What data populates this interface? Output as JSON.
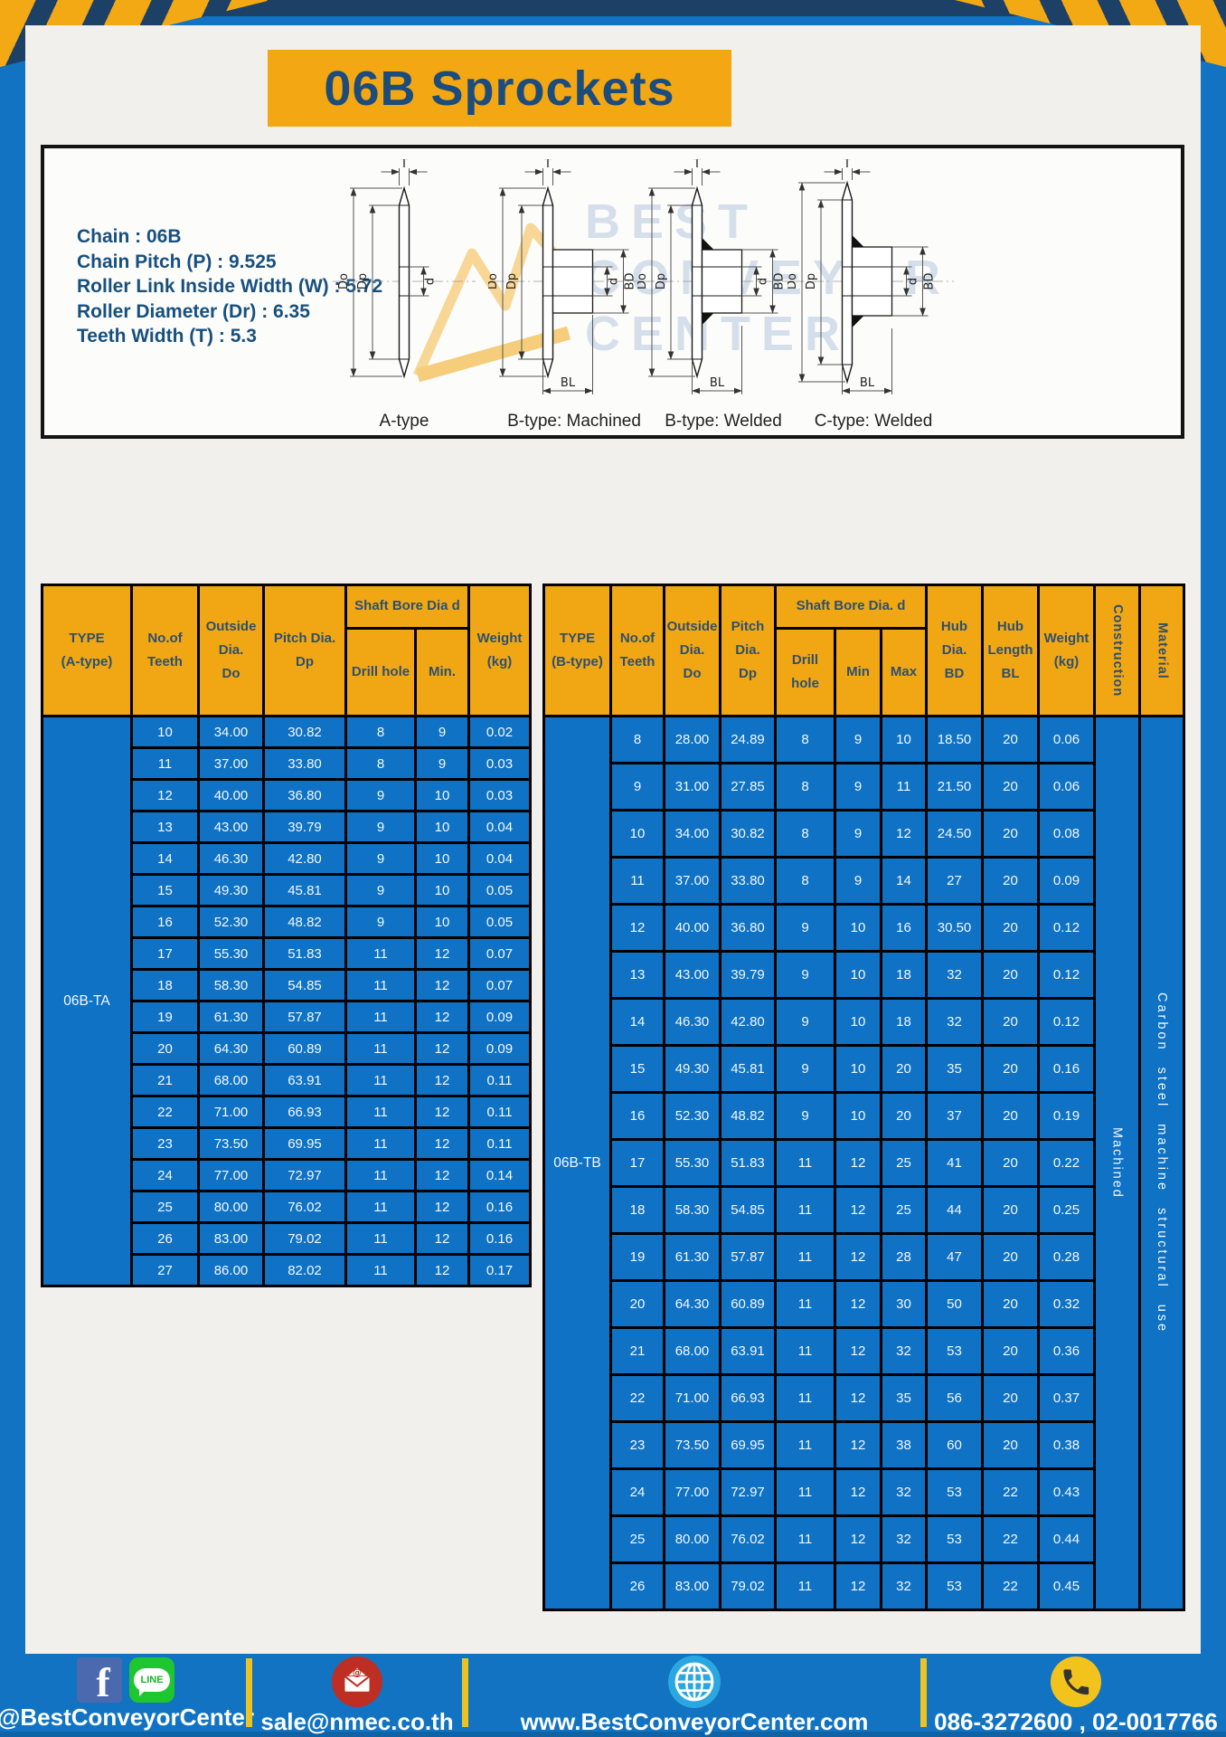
{
  "title": "06B Sprockets",
  "specs": [
    {
      "label": "Chain",
      "value": "06B"
    },
    {
      "label": "Chain Pitch (P)",
      "value": "9.525"
    },
    {
      "label": "Roller Link Inside Width (W)",
      "value": "5.72"
    },
    {
      "label": "Roller Diameter (Dr)",
      "value": "6.35"
    },
    {
      "label": "Teeth Width (T)",
      "value": "5.3"
    }
  ],
  "diagram": {
    "types": [
      "A-type",
      "B-type: Machined",
      "B-type: Welded",
      "C-type: Welded"
    ],
    "dims": {
      "t": "T",
      "do": "Do",
      "dp": "Dp",
      "d": "d",
      "bd": "BD",
      "bl": "BL"
    },
    "watermark": [
      "BEST",
      "CONVEYOR",
      "CENTER"
    ]
  },
  "table_a": {
    "headers": {
      "type": "TYPE\n(A-type)",
      "teeth": "No.of\nTeeth",
      "outside": "Outside\nDia.\nDo",
      "pitch": "Pitch Dia.\nDp",
      "bore_group": "Shaft Bore Dia d",
      "drill": "Drill hole",
      "min": "Min.",
      "weight": "Weight\n(kg)"
    },
    "type_label": "06B-TA",
    "rows": [
      [
        "10",
        "34.00",
        "30.82",
        "8",
        "9",
        "0.02"
      ],
      [
        "11",
        "37.00",
        "33.80",
        "8",
        "9",
        "0.03"
      ],
      [
        "12",
        "40.00",
        "36.80",
        "9",
        "10",
        "0.03"
      ],
      [
        "13",
        "43.00",
        "39.79",
        "9",
        "10",
        "0.04"
      ],
      [
        "14",
        "46.30",
        "42.80",
        "9",
        "10",
        "0.04"
      ],
      [
        "15",
        "49.30",
        "45.81",
        "9",
        "10",
        "0.05"
      ],
      [
        "16",
        "52.30",
        "48.82",
        "9",
        "10",
        "0.05"
      ],
      [
        "17",
        "55.30",
        "51.83",
        "11",
        "12",
        "0.07"
      ],
      [
        "18",
        "58.30",
        "54.85",
        "11",
        "12",
        "0.07"
      ],
      [
        "19",
        "61.30",
        "57.87",
        "11",
        "12",
        "0.09"
      ],
      [
        "20",
        "64.30",
        "60.89",
        "11",
        "12",
        "0.09"
      ],
      [
        "21",
        "68.00",
        "63.91",
        "11",
        "12",
        "0.11"
      ],
      [
        "22",
        "71.00",
        "66.93",
        "11",
        "12",
        "0.11"
      ],
      [
        "23",
        "73.50",
        "69.95",
        "11",
        "12",
        "0.11"
      ],
      [
        "24",
        "77.00",
        "72.97",
        "11",
        "12",
        "0.14"
      ],
      [
        "25",
        "80.00",
        "76.02",
        "11",
        "12",
        "0.16"
      ],
      [
        "26",
        "83.00",
        "79.02",
        "11",
        "12",
        "0.16"
      ],
      [
        "27",
        "86.00",
        "82.02",
        "11",
        "12",
        "0.17"
      ]
    ]
  },
  "table_b": {
    "headers": {
      "type": "TYPE\n(B-type)",
      "teeth": "No.of\nTeeth",
      "outside": "Outside\nDia.\nDo",
      "pitch": "Pitch\nDia.\nDp",
      "bore_group": "Shaft Bore Dia.  d",
      "drill": "Drill hole",
      "min": "Min",
      "max": "Max",
      "hub_dia": "Hub\nDia.\nBD",
      "hub_len": "Hub\nLength\nBL",
      "weight": "Weight\n(kg)",
      "construction": "Construction",
      "material": "Material"
    },
    "type_label": "06B-TB",
    "construction": "Machined",
    "material": "Carbon steel machine structural use",
    "rows": [
      [
        "8",
        "28.00",
        "24.89",
        "8",
        "9",
        "10",
        "18.50",
        "20",
        "0.06"
      ],
      [
        "9",
        "31.00",
        "27.85",
        "8",
        "9",
        "11",
        "21.50",
        "20",
        "0.06"
      ],
      [
        "10",
        "34.00",
        "30.82",
        "8",
        "9",
        "12",
        "24.50",
        "20",
        "0.08"
      ],
      [
        "11",
        "37.00",
        "33.80",
        "8",
        "9",
        "14",
        "27",
        "20",
        "0.09"
      ],
      [
        "12",
        "40.00",
        "36.80",
        "9",
        "10",
        "16",
        "30.50",
        "20",
        "0.12"
      ],
      [
        "13",
        "43.00",
        "39.79",
        "9",
        "10",
        "18",
        "32",
        "20",
        "0.12"
      ],
      [
        "14",
        "46.30",
        "42.80",
        "9",
        "10",
        "18",
        "32",
        "20",
        "0.12"
      ],
      [
        "15",
        "49.30",
        "45.81",
        "9",
        "10",
        "20",
        "35",
        "20",
        "0.16"
      ],
      [
        "16",
        "52.30",
        "48.82",
        "9",
        "10",
        "20",
        "37",
        "20",
        "0.19"
      ],
      [
        "17",
        "55.30",
        "51.83",
        "11",
        "12",
        "25",
        "41",
        "20",
        "0.22"
      ],
      [
        "18",
        "58.30",
        "54.85",
        "11",
        "12",
        "25",
        "44",
        "20",
        "0.25"
      ],
      [
        "19",
        "61.30",
        "57.87",
        "11",
        "12",
        "28",
        "47",
        "20",
        "0.28"
      ],
      [
        "20",
        "64.30",
        "60.89",
        "11",
        "12",
        "30",
        "50",
        "20",
        "0.32"
      ],
      [
        "21",
        "68.00",
        "63.91",
        "11",
        "12",
        "32",
        "53",
        "20",
        "0.36"
      ],
      [
        "22",
        "71.00",
        "66.93",
        "11",
        "12",
        "35",
        "56",
        "20",
        "0.37"
      ],
      [
        "23",
        "73.50",
        "69.95",
        "11",
        "12",
        "38",
        "60",
        "20",
        "0.38"
      ],
      [
        "24",
        "77.00",
        "72.97",
        "11",
        "12",
        "32",
        "53",
        "22",
        "0.43"
      ],
      [
        "25",
        "80.00",
        "76.02",
        "11",
        "12",
        "32",
        "53",
        "22",
        "0.44"
      ],
      [
        "26",
        "83.00",
        "79.02",
        "11",
        "12",
        "32",
        "53",
        "22",
        "0.45"
      ]
    ]
  },
  "footer": {
    "facebook_glyph": "f",
    "line_glyph": "LINE",
    "items": [
      {
        "text": "@BestConveyorCenter"
      },
      {
        "text": "sale@nmec.co.th"
      },
      {
        "text": "www.BestConveyorCenter.com"
      },
      {
        "text": "086-3272600 , 02-0017766"
      }
    ]
  }
}
